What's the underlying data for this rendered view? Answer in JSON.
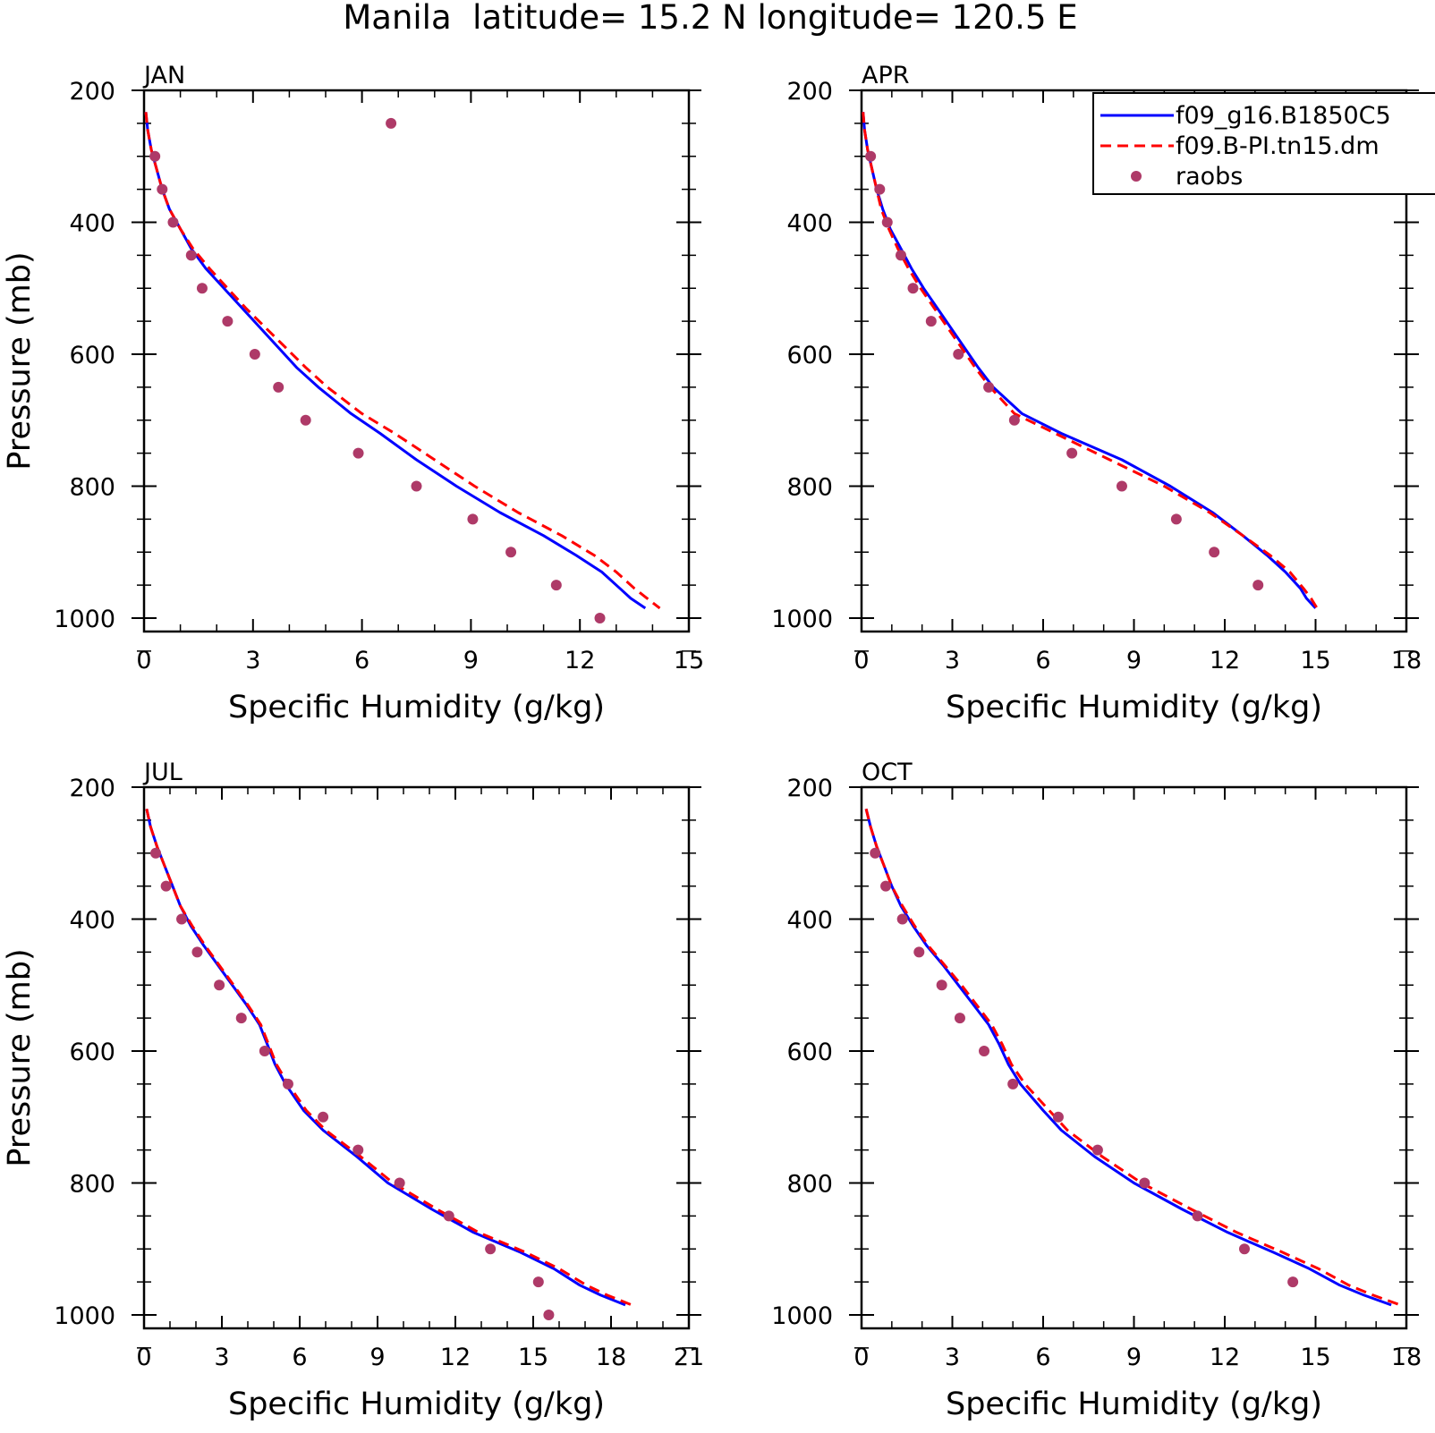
{
  "figure": {
    "title": "Manila  latitude= 15.2 N longitude= 120.5 E",
    "pressure_levels": [
      300,
      350,
      400,
      450,
      500,
      550,
      600,
      650,
      700,
      750,
      800,
      850,
      900,
      950,
      1000
    ],
    "model_levels": [
      233,
      260,
      290,
      320,
      350,
      380,
      410,
      440,
      470,
      500,
      530,
      560,
      590,
      620,
      650,
      690,
      720,
      760,
      800,
      840,
      875,
      905,
      930,
      955,
      970,
      985
    ],
    "colors": {
      "model1": "#0000ff",
      "model2": "#ff0000",
      "raobs": "#ae3a68"
    },
    "legend": {
      "entries": [
        "f09_g16.B1850C5",
        "f09.B-PI.tn15.dm",
        "raobs"
      ],
      "placement": "top-right of APR panel"
    }
  },
  "chart_data": [
    {
      "type": "line",
      "panel_title": "JAN",
      "xlabel": "Specific Humidity (g/kg)",
      "ylabel": "Pressure (mb)",
      "xlim": [
        0,
        15
      ],
      "xticks": [
        0,
        3,
        6,
        9,
        12,
        15
      ],
      "ylim": [
        200,
        1050
      ],
      "yticks": [
        200,
        400,
        600,
        800,
        1000
      ],
      "y_reversed": true,
      "series": [
        {
          "name": "f09_g16.B1850C5",
          "style": "solid",
          "x": [
            0.05,
            0.1,
            0.2,
            0.35,
            0.5,
            0.7,
            1.0,
            1.3,
            1.7,
            2.2,
            2.7,
            3.2,
            3.7,
            4.2,
            4.8,
            5.7,
            6.5,
            7.5,
            8.6,
            9.8,
            11.0,
            11.9,
            12.6,
            13.1,
            13.4,
            13.8
          ]
        },
        {
          "name": "f09.B-PI.tn15.dm",
          "style": "dashed",
          "x": [
            0.05,
            0.1,
            0.2,
            0.35,
            0.5,
            0.7,
            1.0,
            1.35,
            1.8,
            2.3,
            2.8,
            3.35,
            3.9,
            4.45,
            5.05,
            6.0,
            6.9,
            8.0,
            9.1,
            10.3,
            11.5,
            12.4,
            13.0,
            13.5,
            13.85,
            14.2
          ]
        },
        {
          "name": "raobs",
          "style": "points",
          "x": [
            0.3,
            0.5,
            0.8,
            1.3,
            1.6,
            2.3,
            3.05,
            3.7,
            4.45,
            5.9,
            7.5,
            9.05,
            10.1,
            11.35,
            12.55
          ],
          "y": [
            300,
            350,
            400,
            450,
            500,
            550,
            600,
            650,
            700,
            750,
            800,
            850,
            900,
            950,
            1000
          ],
          "extra_points": [
            {
              "x": 6.8,
              "y": 250
            }
          ]
        }
      ]
    },
    {
      "type": "line",
      "panel_title": "APR",
      "xlabel": "Specific Humidity (g/kg)",
      "ylabel": "",
      "xlim": [
        0,
        18
      ],
      "xticks": [
        0,
        3,
        6,
        9,
        12,
        15,
        18
      ],
      "ylim": [
        200,
        1050
      ],
      "yticks": [
        200,
        400,
        600,
        800,
        1000
      ],
      "y_reversed": true,
      "series": [
        {
          "name": "f09_g16.B1850C5",
          "style": "solid",
          "x": [
            0.05,
            0.1,
            0.2,
            0.35,
            0.5,
            0.7,
            0.95,
            1.3,
            1.65,
            2.05,
            2.5,
            2.95,
            3.4,
            3.85,
            4.35,
            5.3,
            6.6,
            8.6,
            10.2,
            11.6,
            12.6,
            13.4,
            14.0,
            14.5,
            14.7,
            15.0
          ]
        },
        {
          "name": "f09.B-PI.tn15.dm",
          "style": "dashed",
          "x": [
            0.05,
            0.1,
            0.2,
            0.35,
            0.5,
            0.65,
            0.9,
            1.2,
            1.55,
            1.95,
            2.4,
            2.85,
            3.3,
            3.75,
            4.25,
            5.05,
            6.4,
            8.2,
            10.0,
            11.5,
            12.6,
            13.5,
            14.15,
            14.6,
            14.85,
            15.05
          ]
        },
        {
          "name": "raobs",
          "style": "points",
          "x": [
            0.3,
            0.6,
            0.85,
            1.3,
            1.7,
            2.3,
            3.2,
            4.2,
            5.05,
            6.95,
            8.6,
            10.4,
            11.65,
            13.1
          ],
          "y": [
            300,
            350,
            400,
            450,
            500,
            550,
            600,
            650,
            700,
            750,
            800,
            850,
            900,
            950
          ]
        }
      ]
    },
    {
      "type": "line",
      "panel_title": "JUL",
      "xlabel": "Specific Humidity (g/kg)",
      "ylabel": "Pressure (mb)",
      "xlim": [
        0,
        21
      ],
      "xticks": [
        0,
        3,
        6,
        9,
        12,
        15,
        18,
        21
      ],
      "ylim": [
        200,
        1050
      ],
      "yticks": [
        200,
        400,
        600,
        800,
        1000
      ],
      "y_reversed": true,
      "series": [
        {
          "name": "f09_g16.B1850C5",
          "style": "solid",
          "x": [
            0.1,
            0.25,
            0.5,
            0.8,
            1.1,
            1.4,
            1.8,
            2.3,
            2.85,
            3.4,
            3.95,
            4.45,
            4.75,
            5.05,
            5.45,
            6.15,
            6.9,
            8.2,
            9.4,
            11.1,
            12.7,
            14.5,
            15.8,
            16.8,
            17.6,
            18.55
          ]
        },
        {
          "name": "f09.B-PI.tn15.dm",
          "style": "dashed",
          "x": [
            0.1,
            0.25,
            0.5,
            0.8,
            1.1,
            1.4,
            1.85,
            2.35,
            2.9,
            3.45,
            4.0,
            4.5,
            4.8,
            5.1,
            5.55,
            6.25,
            7.0,
            8.35,
            9.6,
            11.3,
            12.9,
            14.7,
            16.0,
            17.05,
            17.85,
            18.8
          ]
        },
        {
          "name": "raobs",
          "style": "points",
          "x": [
            0.45,
            0.85,
            1.45,
            2.05,
            2.9,
            3.75,
            4.65,
            5.55,
            6.9,
            8.25,
            9.85,
            11.75,
            13.35,
            15.2,
            15.6
          ],
          "y": [
            300,
            350,
            400,
            450,
            500,
            550,
            600,
            650,
            700,
            750,
            800,
            850,
            900,
            950,
            1000
          ]
        }
      ]
    },
    {
      "type": "line",
      "panel_title": "OCT",
      "xlabel": "Specific Humidity (g/kg)",
      "ylabel": "",
      "xlim": [
        0,
        18
      ],
      "xticks": [
        0,
        3,
        6,
        9,
        12,
        15,
        18
      ],
      "ylim": [
        200,
        1050
      ],
      "yticks": [
        200,
        400,
        600,
        800,
        1000
      ],
      "y_reversed": true,
      "series": [
        {
          "name": "f09_g16.B1850C5",
          "style": "solid",
          "x": [
            0.15,
            0.3,
            0.5,
            0.75,
            1.0,
            1.3,
            1.7,
            2.15,
            2.7,
            3.2,
            3.7,
            4.2,
            4.55,
            4.85,
            5.25,
            6.0,
            6.6,
            7.7,
            9.0,
            10.6,
            12.1,
            13.6,
            14.8,
            15.8,
            16.6,
            17.5
          ]
        },
        {
          "name": "f09.B-PI.tn15.dm",
          "style": "dashed",
          "x": [
            0.15,
            0.3,
            0.5,
            0.75,
            1.0,
            1.35,
            1.75,
            2.2,
            2.75,
            3.3,
            3.8,
            4.3,
            4.65,
            4.95,
            5.4,
            6.2,
            6.8,
            7.95,
            9.25,
            10.9,
            12.4,
            13.9,
            15.1,
            16.1,
            16.9,
            17.8
          ]
        },
        {
          "name": "raobs",
          "style": "points",
          "x": [
            0.45,
            0.8,
            1.35,
            1.9,
            2.65,
            3.25,
            4.05,
            5.0,
            6.5,
            7.8,
            9.35,
            11.1,
            12.65,
            14.25
          ],
          "y": [
            300,
            350,
            400,
            450,
            500,
            550,
            600,
            650,
            700,
            750,
            800,
            850,
            900,
            950
          ]
        }
      ]
    }
  ]
}
